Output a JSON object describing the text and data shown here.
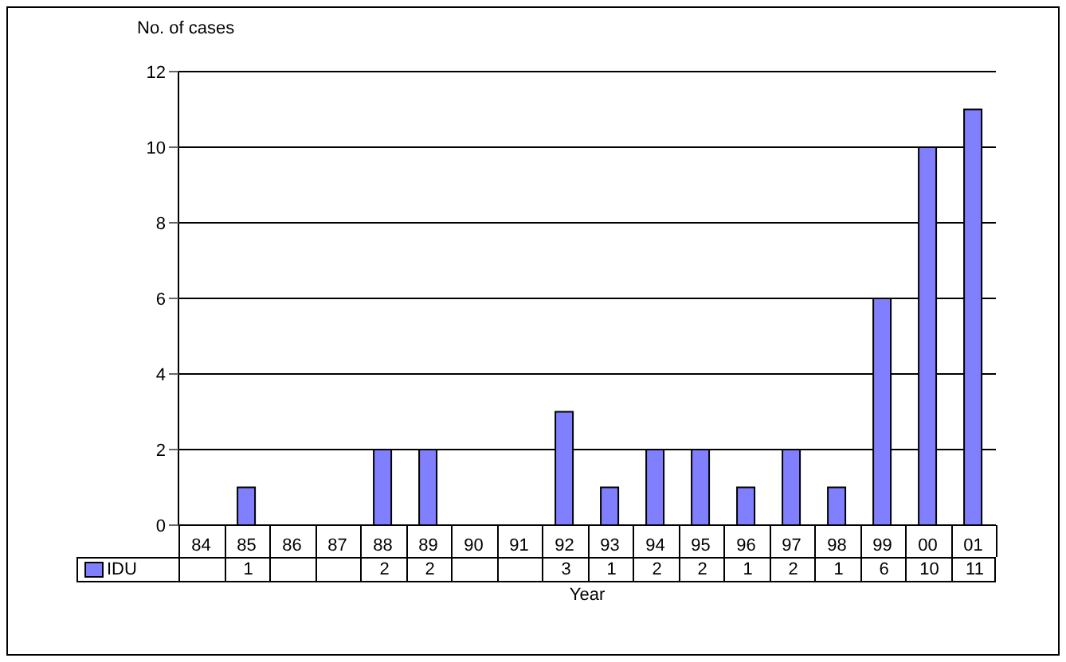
{
  "chart_data": {
    "type": "bar",
    "ylabel": "No. of cases",
    "xlabel": "Year",
    "categories": [
      "84",
      "85",
      "86",
      "87",
      "88",
      "89",
      "90",
      "91",
      "92",
      "93",
      "94",
      "95",
      "96",
      "97",
      "98",
      "99",
      "00",
      "01"
    ],
    "series": [
      {
        "name": "IDU",
        "color": "#8080ff",
        "values": [
          0,
          1,
          0,
          0,
          2,
          2,
          0,
          0,
          3,
          1,
          2,
          2,
          1,
          2,
          1,
          6,
          10,
          11
        ],
        "value_labels": [
          null,
          "1",
          null,
          null,
          "2",
          "2",
          null,
          null,
          "3",
          "1",
          "2",
          "2",
          "1",
          "2",
          "1",
          "6",
          "10",
          "11"
        ]
      }
    ],
    "ylim": [
      0,
      12
    ],
    "yticks": [
      0,
      2,
      4,
      6,
      8,
      10,
      12
    ],
    "grid": "y",
    "legend": "bottom"
  }
}
